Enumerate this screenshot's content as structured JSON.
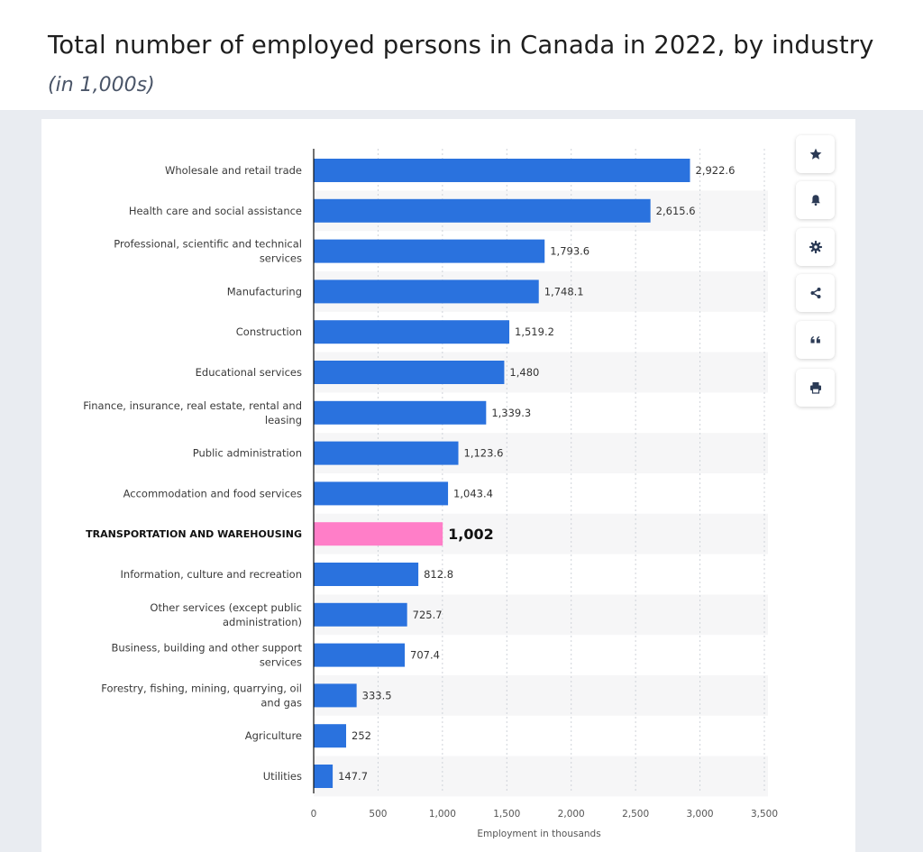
{
  "header": {
    "title": "Total number of employed persons in Canada in 2022, by industry",
    "subtitle": "(in 1,000s)"
  },
  "toolbar": {
    "buttons": [
      {
        "icon": "star-icon"
      },
      {
        "icon": "bell-icon"
      },
      {
        "icon": "gear-icon"
      },
      {
        "icon": "share-icon"
      },
      {
        "icon": "quote-icon"
      },
      {
        "icon": "print-icon"
      }
    ]
  },
  "chart_data": {
    "type": "bar",
    "orientation": "horizontal",
    "title": "",
    "xlabel": "Employment in thousands",
    "ylabel": "",
    "xlim": [
      0,
      3500
    ],
    "xticks": [
      0,
      500,
      1000,
      1500,
      2000,
      2500,
      3000,
      3500
    ],
    "xtick_labels": [
      "0",
      "500",
      "1,000",
      "1,500",
      "2,000",
      "2,500",
      "3,000",
      "3,500"
    ],
    "grid": "vertical dashed",
    "bar_color": "#2a72de",
    "highlight_color": "#ff7ec8",
    "highlight_index": 9,
    "categories": [
      [
        "Wholesale and retail trade"
      ],
      [
        "Health care and social assistance"
      ],
      [
        "Professional, scientific and technical",
        "services"
      ],
      [
        "Manufacturing"
      ],
      [
        "Construction"
      ],
      [
        "Educational services"
      ],
      [
        "Finance, insurance, real estate, rental and",
        "leasing"
      ],
      [
        "Public administration"
      ],
      [
        "Accommodation and food services"
      ],
      [
        "TRANSPORTATION AND WAREHOUSING"
      ],
      [
        "Information, culture and recreation"
      ],
      [
        "Other services (except public",
        "administration)"
      ],
      [
        "Business, building and other support",
        "services"
      ],
      [
        "Forestry, fishing, mining, quarrying, oil",
        "and gas"
      ],
      [
        "Agriculture"
      ],
      [
        "Utilities"
      ]
    ],
    "values": [
      2922.6,
      2615.6,
      1793.6,
      1748.1,
      1519.2,
      1480,
      1339.3,
      1123.6,
      1043.4,
      1002,
      812.8,
      725.7,
      707.4,
      333.5,
      252,
      147.7
    ],
    "value_labels": [
      "2,922.6",
      "2,615.6",
      "1,793.6",
      "1,748.1",
      "1,519.2",
      "1,480",
      "1,339.3",
      "1,123.6",
      "1,043.4",
      "1,002",
      "812.8",
      "725.7",
      "707.4",
      "333.5",
      "252",
      "147.7"
    ]
  }
}
